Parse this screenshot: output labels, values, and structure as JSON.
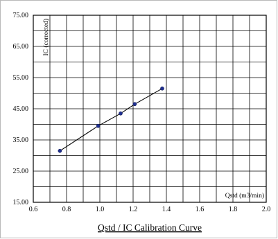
{
  "chart_data": {
    "type": "scatter",
    "title": "Qstd / IC Calibration Curve",
    "xlabel": "Qstd (m3/min)",
    "ylabel": "IC (corrected)",
    "xlim": [
      0.6,
      2.0
    ],
    "ylim": [
      15.0,
      75.0
    ],
    "x_ticks": [
      "0.6",
      "0.8",
      "1.0",
      "1.2",
      "1.4",
      "1.6",
      "1.8",
      "2.0"
    ],
    "y_ticks": [
      "15.00",
      "25.00",
      "35.00",
      "45.00",
      "55.00",
      "65.00",
      "75.00"
    ],
    "grid": true,
    "series": [
      {
        "x": [
          0.76,
          0.99,
          1.125,
          1.21,
          1.375
        ],
        "y": [
          31.5,
          39.5,
          43.5,
          46.5,
          51.5
        ],
        "color": "#1f2f8f",
        "line_color": "#000000"
      }
    ]
  }
}
